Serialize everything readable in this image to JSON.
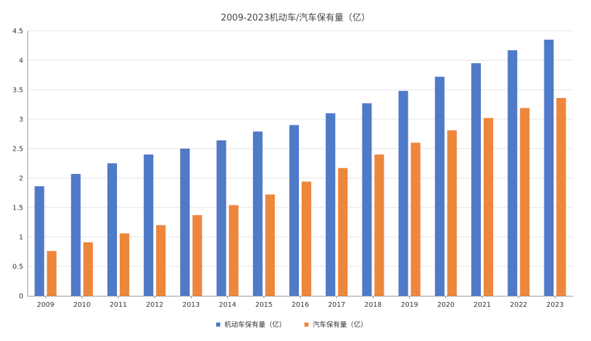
{
  "chart_data": {
    "type": "bar",
    "title": "2009-2023机动车/汽车保有量（亿）",
    "categories": [
      "2009",
      "2010",
      "2011",
      "2012",
      "2013",
      "2014",
      "2015",
      "2016",
      "2017",
      "2018",
      "2019",
      "2020",
      "2021",
      "2022",
      "2023"
    ],
    "series": [
      {
        "name": "机动车保有量（亿）",
        "color": "#4f7ac7",
        "values": [
          1.86,
          2.07,
          2.25,
          2.4,
          2.5,
          2.64,
          2.79,
          2.9,
          3.1,
          3.27,
          3.48,
          3.72,
          3.95,
          4.17,
          4.35
        ]
      },
      {
        "name": "汽车保有量（亿）",
        "color": "#ed873c",
        "values": [
          0.76,
          0.91,
          1.06,
          1.2,
          1.37,
          1.54,
          1.72,
          1.94,
          2.17,
          2.4,
          2.6,
          2.81,
          3.02,
          3.19,
          3.36
        ]
      }
    ],
    "ylim": [
      0,
      4.5
    ],
    "yticks": [
      "0",
      "0.5",
      "1",
      "1.5",
      "2",
      "2.5",
      "3",
      "3.5",
      "4",
      "4.5"
    ],
    "grid": true,
    "legend_position": "bottom-center"
  }
}
